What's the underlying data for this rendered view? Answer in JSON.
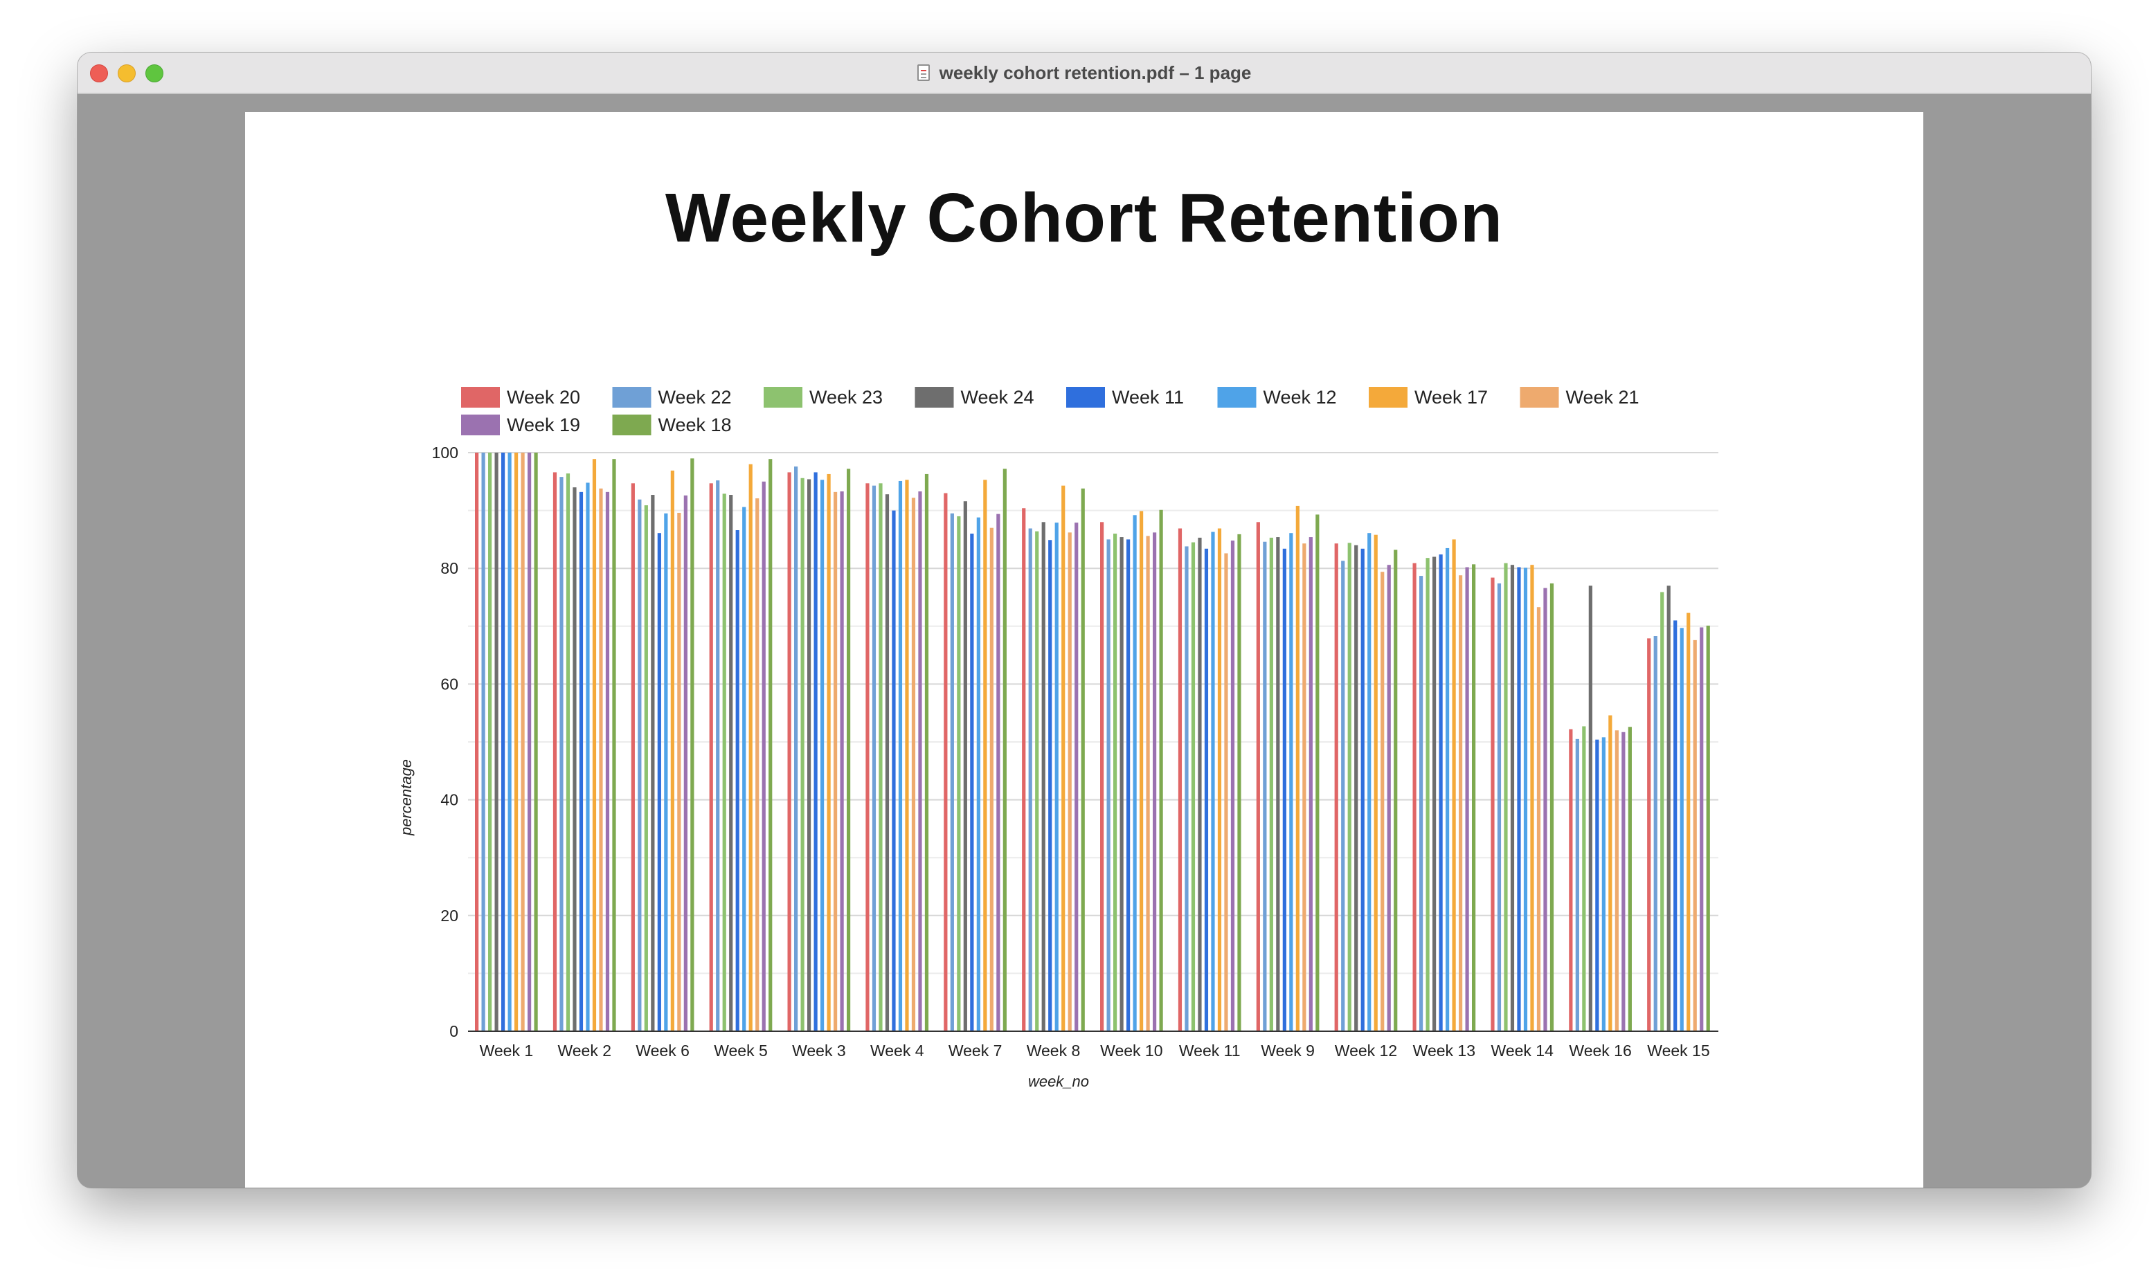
{
  "window": {
    "title": "weekly cohort retention.pdf – 1 page"
  },
  "chart_data": {
    "type": "bar",
    "title": "Weekly Cohort Retention",
    "xlabel": "week_no",
    "ylabel": "percentage",
    "ylim": [
      0,
      100
    ],
    "yticks": [
      0,
      20,
      40,
      60,
      80,
      100
    ],
    "grid": true,
    "legend_position": "top-left",
    "categories": [
      "Week 1",
      "Week 2",
      "Week 6",
      "Week 5",
      "Week 3",
      "Week 4",
      "Week 7",
      "Week 8",
      "Week 10",
      "Week 11",
      "Week 9",
      "Week 12",
      "Week 13",
      "Week 14",
      "Week 16",
      "Week 15"
    ],
    "series": [
      {
        "name": "Week 20",
        "color": "#e06666",
        "values": [
          100,
          96.6,
          94.7,
          94.7,
          96.6,
          94.7,
          93.0,
          90.4,
          88.0,
          86.9,
          88.0,
          84.3,
          80.9,
          78.4,
          52.2,
          67.9
        ]
      },
      {
        "name": "Week 22",
        "color": "#6fa0d6",
        "values": [
          100,
          95.8,
          91.9,
          95.2,
          97.6,
          94.3,
          89.5,
          86.9,
          85.0,
          83.8,
          84.6,
          81.3,
          78.7,
          77.4,
          50.5,
          68.3
        ]
      },
      {
        "name": "Week 23",
        "color": "#8dc26f",
        "values": [
          100,
          96.4,
          90.9,
          92.9,
          95.6,
          94.7,
          89.0,
          86.4,
          86.0,
          84.5,
          85.3,
          84.4,
          81.8,
          80.9,
          52.7,
          75.9
        ]
      },
      {
        "name": "Week 24",
        "color": "#6e6e6e",
        "values": [
          100,
          94.0,
          92.7,
          92.7,
          95.4,
          92.8,
          91.6,
          88.0,
          85.4,
          85.3,
          85.4,
          84.0,
          82.0,
          80.6,
          77.0,
          77.0
        ]
      },
      {
        "name": "Week 11",
        "color": "#2f6fdd",
        "values": [
          100,
          93.2,
          86.1,
          86.6,
          96.6,
          90.0,
          86.0,
          84.9,
          85.0,
          83.4,
          83.4,
          83.4,
          82.4,
          80.2,
          50.4,
          71.0
        ]
      },
      {
        "name": "Week 12",
        "color": "#4fa3e8",
        "values": [
          100,
          94.8,
          89.5,
          90.6,
          95.3,
          95.1,
          88.8,
          87.9,
          89.2,
          86.3,
          86.1,
          86.1,
          83.5,
          80.1,
          50.8,
          69.7
        ]
      },
      {
        "name": "Week 17",
        "color": "#f4a93a",
        "values": [
          100,
          98.9,
          96.9,
          98.0,
          96.3,
          95.3,
          95.3,
          94.3,
          89.9,
          86.9,
          90.8,
          85.8,
          85.0,
          80.6,
          54.6,
          72.3
        ]
      },
      {
        "name": "Week 21",
        "color": "#eeaa6e",
        "values": [
          100,
          93.8,
          89.6,
          92.1,
          93.2,
          92.2,
          87.0,
          86.2,
          85.6,
          82.6,
          84.3,
          79.4,
          78.8,
          73.3,
          52.0,
          67.6
        ]
      },
      {
        "name": "Week 19",
        "color": "#9b72b0",
        "values": [
          100,
          93.2,
          92.6,
          95.0,
          93.3,
          93.3,
          89.4,
          87.9,
          86.2,
          84.8,
          85.4,
          80.6,
          80.2,
          76.6,
          51.7,
          69.8
        ]
      },
      {
        "name": "Week 18",
        "color": "#7ea950",
        "values": [
          100,
          98.9,
          99.0,
          98.9,
          97.2,
          96.3,
          97.2,
          93.8,
          90.1,
          85.9,
          89.3,
          83.2,
          80.7,
          77.4,
          52.6,
          70.1
        ]
      }
    ]
  }
}
